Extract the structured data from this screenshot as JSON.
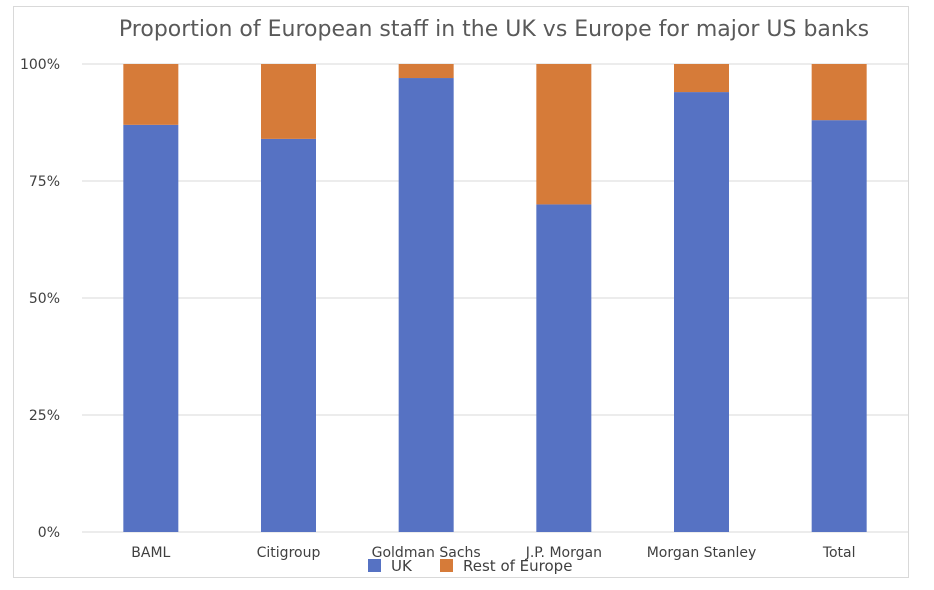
{
  "chart_data": {
    "type": "bar",
    "stacked": true,
    "percent": true,
    "title": "Proportion of European staff in the UK vs Europe for major US banks",
    "categories": [
      "BAML",
      "Citigroup",
      "Goldman Sachs",
      "J.P. Morgan",
      "Morgan Stanley",
      "Total"
    ],
    "series": [
      {
        "name": "UK",
        "color": "#5672c3",
        "values": [
          87,
          84,
          97,
          70,
          94,
          88
        ]
      },
      {
        "name": "Rest of Europe",
        "color": "#d67b39",
        "values": [
          13,
          16,
          3,
          30,
          6,
          12
        ]
      }
    ],
    "yticks": [
      "0%",
      "25%",
      "50%",
      "75%",
      "100%"
    ],
    "ylim": [
      0,
      100
    ],
    "grid": true,
    "legend": "bottom"
  }
}
